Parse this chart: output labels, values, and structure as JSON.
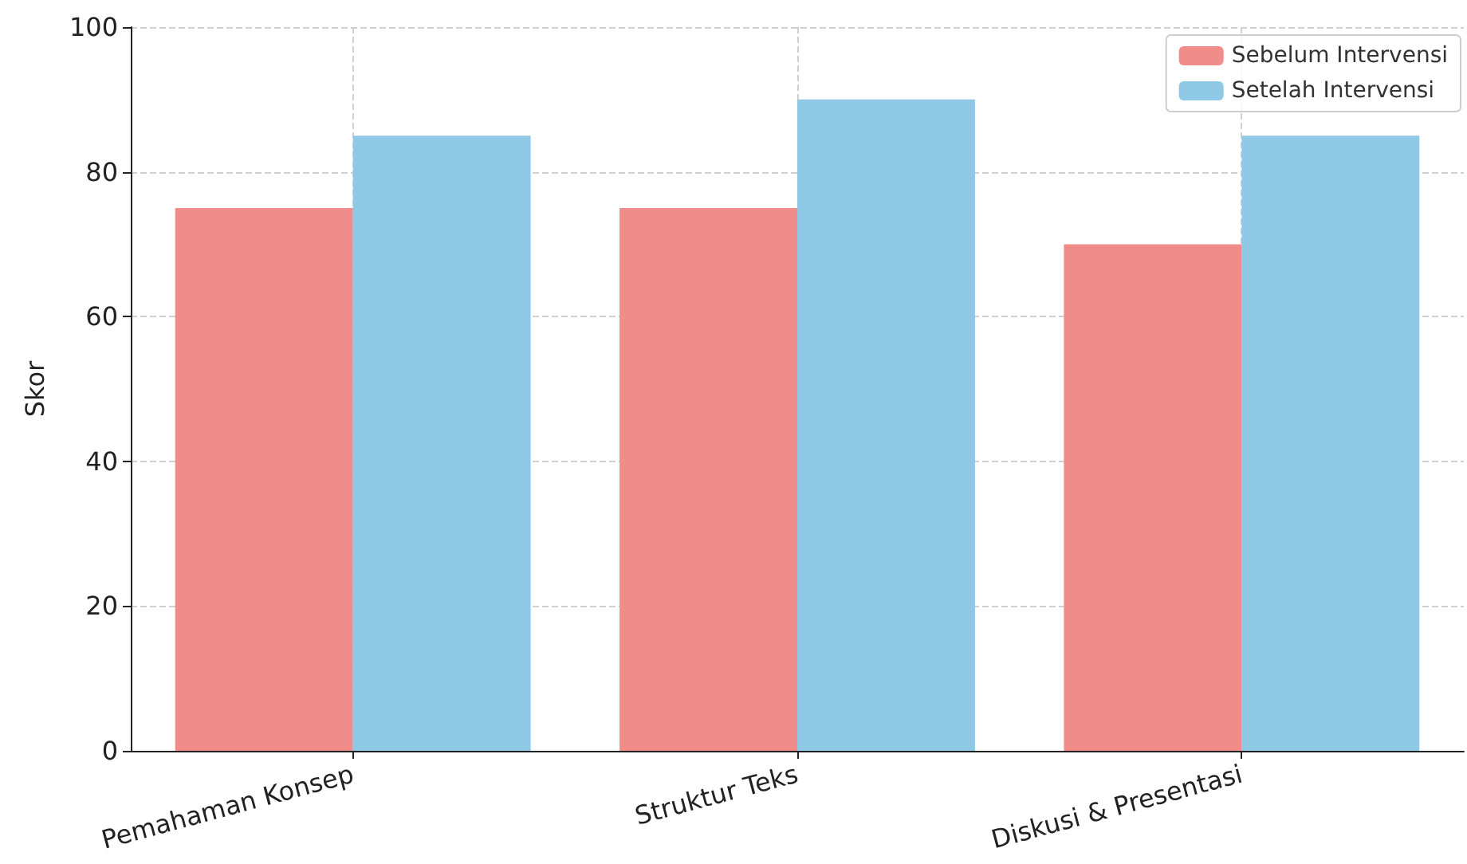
{
  "chart_data": {
    "type": "bar",
    "ylabel": "Skor",
    "categories": [
      "Pemahaman Konsep",
      "Struktur Teks",
      "Diskusi & Presentasi"
    ],
    "series": [
      {
        "name": "Sebelum Intervensi",
        "color": "#f08c8a",
        "values": [
          75,
          75,
          70
        ]
      },
      {
        "name": "Setelah Intervensi",
        "color": "#8fc9e6",
        "values": [
          85,
          90,
          85
        ]
      }
    ],
    "ylim": [
      0,
      100
    ],
    "yticks": [
      0,
      20,
      40,
      60,
      80,
      100
    ],
    "grid": true,
    "legend": "top right"
  }
}
